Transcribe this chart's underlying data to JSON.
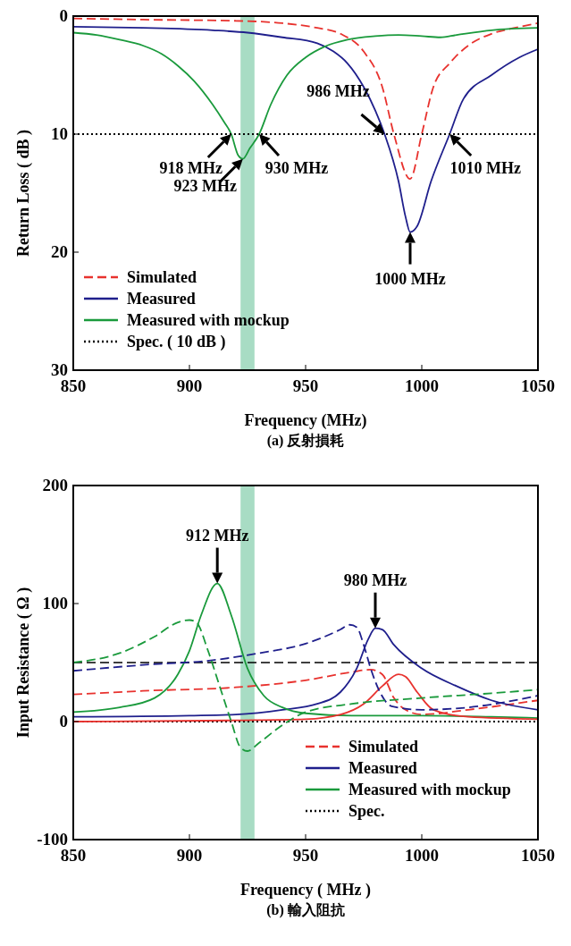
{
  "chart_data": [
    {
      "type": "line",
      "title": "(a) 反射損耗",
      "xlabel": "Frequency (MHz)",
      "ylabel": "Return Loss ( dB )",
      "xlim": [
        850,
        1050
      ],
      "xticks": [
        850,
        900,
        950,
        1000,
        1050
      ],
      "ylim": [
        30,
        0
      ],
      "yticks": [
        0,
        10,
        20,
        30
      ],
      "legend": "bottom left",
      "bands": [
        {
          "axis": "x",
          "from": 922,
          "to": 928,
          "color": "#a8dcc4"
        }
      ],
      "series": [
        {
          "name": "Simulated",
          "color": "#e8322e",
          "line_style": "dashed",
          "x": [
            850,
            880,
            920,
            940,
            955,
            965,
            975,
            983,
            988,
            995,
            1000,
            1005,
            1012,
            1020,
            1030,
            1040,
            1050
          ],
          "values": [
            0.2,
            0.3,
            0.4,
            0.6,
            1,
            1.5,
            3,
            6,
            10,
            13.8,
            10,
            6,
            4,
            2.5,
            1.5,
            1,
            0.6
          ]
        },
        {
          "name": "Measured",
          "color": "#1f1f8c",
          "line_style": "solid",
          "x": [
            850,
            880,
            910,
            925,
            940,
            955,
            962,
            968,
            975,
            980,
            984,
            990,
            993,
            995,
            998,
            1004,
            1012,
            1018,
            1030,
            1042,
            1050
          ],
          "values": [
            0.9,
            1,
            1.2,
            1.4,
            1.8,
            2.3,
            3,
            4,
            6,
            8,
            10,
            14,
            17,
            18.3,
            17.8,
            14,
            10,
            7,
            5,
            3.5,
            2.8
          ]
        },
        {
          "name": "Measured with mockup",
          "color": "#1a9a3c",
          "line_style": "solid",
          "x": [
            850,
            860,
            870,
            880,
            888,
            895,
            902,
            910,
            915,
            918,
            921,
            923,
            926,
            930,
            935,
            942,
            950,
            958,
            968,
            980,
            990,
            1000,
            1008,
            1015,
            1030,
            1050
          ],
          "values": [
            1.4,
            1.6,
            2,
            2.5,
            3.2,
            4.2,
            5.5,
            7.5,
            9,
            10,
            11.8,
            12.1,
            11.2,
            10,
            7.5,
            5,
            3.5,
            2.6,
            2,
            1.7,
            1.6,
            1.7,
            1.8,
            1.6,
            1.2,
            1
          ]
        },
        {
          "name": "Spec. ( 10 dB )",
          "color": "#000000",
          "line_style": "dotted",
          "x": [
            850,
            1050
          ],
          "values": [
            10,
            10
          ]
        }
      ],
      "annotations": [
        {
          "text": "918 MHz",
          "x": 918,
          "y": 10
        },
        {
          "text": "923 MHz",
          "x": 923,
          "y": 12.1
        },
        {
          "text": "930 MHz",
          "x": 930,
          "y": 10
        },
        {
          "text": "986 MHz",
          "x": 984,
          "y": 10
        },
        {
          "text": "1010 MHz",
          "x": 1012,
          "y": 10
        },
        {
          "text": "1000 MHz",
          "x": 995,
          "y": 18.3
        }
      ]
    },
    {
      "type": "line",
      "title": "(b) 輸入阻抗",
      "xlabel": "Frequency ( MHz )",
      "ylabel": "Input Resistance ( Ω )",
      "xlim": [
        850,
        1050
      ],
      "xticks": [
        850,
        900,
        950,
        1000,
        1050
      ],
      "ylim": [
        -100,
        200
      ],
      "yticks": [
        -100,
        0,
        100,
        200
      ],
      "legend": "bottom right",
      "bands": [
        {
          "axis": "x",
          "from": 922,
          "to": 928,
          "color": "#a8dcc4"
        }
      ],
      "ref_lines": [
        {
          "axis": "y",
          "value": 50,
          "color": "#000000",
          "line_style": "dashed"
        }
      ],
      "series": [
        {
          "name": "Simulated",
          "color": "#e8322e",
          "line_style": "dashed",
          "x": [
            850,
            880,
            920,
            950,
            970,
            978,
            983,
            988,
            993,
            1000,
            1020,
            1050
          ],
          "values": [
            23,
            26,
            29,
            35,
            42,
            44,
            40,
            20,
            10,
            6,
            10,
            18
          ]
        },
        {
          "name": "Measured",
          "color": "#1f1f8c",
          "line_style": "solid",
          "x": [
            850,
            900,
            920,
            940,
            955,
            965,
            972,
            977,
            980,
            983,
            988,
            1000,
            1015,
            1030,
            1050
          ],
          "values": [
            4,
            5,
            6,
            10,
            15,
            25,
            45,
            70,
            79,
            78,
            65,
            45,
            30,
            18,
            10
          ]
        },
        {
          "name": "Measured with mockup",
          "color": "#1a9a3c",
          "line_style": "solid",
          "x": [
            850,
            870,
            885,
            895,
            900,
            905,
            912,
            918,
            925,
            932,
            940,
            950,
            970,
            1000,
            1030,
            1050
          ],
          "values": [
            8,
            12,
            20,
            40,
            60,
            90,
            117,
            90,
            45,
            22,
            12,
            7,
            5,
            5,
            4,
            3
          ]
        },
        {
          "name": "Spec.",
          "color": "#000000",
          "line_style": "dotted",
          "x": [
            850,
            1050
          ],
          "values": [
            0,
            0
          ]
        },
        {
          "color": "#e8322e",
          "line_style": "solid",
          "x": [
            850,
            920,
            950,
            965,
            975,
            983,
            990,
            993,
            998,
            1005,
            1020,
            1050
          ],
          "values": [
            0,
            1,
            2,
            6,
            15,
            30,
            40,
            38,
            25,
            10,
            4,
            2
          ]
        },
        {
          "color": "#1f1f8c",
          "line_style": "dashed",
          "x": [
            850,
            880,
            910,
            930,
            950,
            965,
            969,
            972,
            975,
            978,
            982,
            987,
            1000,
            1020,
            1050
          ],
          "values": [
            43,
            48,
            52,
            58,
            66,
            78,
            82,
            80,
            65,
            45,
            25,
            13,
            10,
            12,
            22
          ]
        },
        {
          "color": "#1a9a3c",
          "line_style": "dashed",
          "x": [
            850,
            870,
            885,
            895,
            900,
            903,
            908,
            913,
            918,
            922,
            925,
            930,
            940,
            950,
            970,
            1000,
            1030,
            1050
          ],
          "values": [
            50,
            58,
            72,
            84,
            86,
            84,
            60,
            30,
            0,
            -22,
            -25,
            -18,
            -3,
            8,
            15,
            20,
            24,
            27
          ]
        }
      ],
      "annotations": [
        {
          "text": "912 MHz",
          "x": 912,
          "y": 117
        },
        {
          "text": "980 MHz",
          "x": 980,
          "y": 79
        }
      ]
    }
  ]
}
